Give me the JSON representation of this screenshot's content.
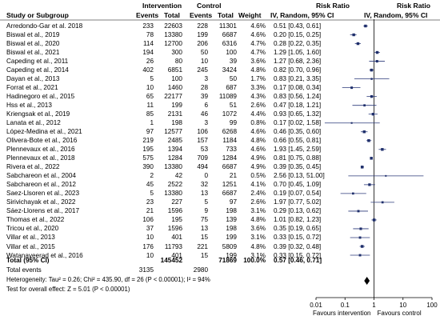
{
  "header": {
    "study": "Study or Subgroup",
    "intervention": "Intervention",
    "control": "Control",
    "events": "Events",
    "total": "Total",
    "weight": "Weight",
    "risk_ratio": "Risk Ratio",
    "method_left": "IV, Random, 95% CI",
    "method_right": "IV, Random, 95% CI"
  },
  "studies": [
    {
      "name": "Arredondo-Gar et al. 2018",
      "ie": "233",
      "it": "22603",
      "ce": "228",
      "ct": "11301",
      "w": "4.6%",
      "ci": "0.51 [0.43, 0.61]"
    },
    {
      "name": "Biswal et al., 2019",
      "ie": "78",
      "it": "13380",
      "ce": "199",
      "ct": "6687",
      "w": "4.6%",
      "ci": "0.20 [0.15, 0.25]"
    },
    {
      "name": "Biswal et al., 2020",
      "ie": "114",
      "it": "12700",
      "ce": "206",
      "ct": "6316",
      "w": "4.7%",
      "ci": "0.28 [0.22, 0.35]"
    },
    {
      "name": "Biswal et al., 2021",
      "ie": "194",
      "it": "300",
      "ce": "50",
      "ct": "100",
      "w": "4.7%",
      "ci": "1.29 [1.05, 1.60]"
    },
    {
      "name": "Capeding et al., 2011",
      "ie": "26",
      "it": "80",
      "ce": "10",
      "ct": "39",
      "w": "3.6%",
      "ci": "1.27 [0.68, 2.36]"
    },
    {
      "name": "Capeding et al., 2014",
      "ie": "402",
      "it": "6851",
      "ce": "245",
      "ct": "3424",
      "w": "4.8%",
      "ci": "0.82 [0.70, 0.96]"
    },
    {
      "name": "Dayan et al., 2013",
      "ie": "5",
      "it": "100",
      "ce": "3",
      "ct": "50",
      "w": "1.7%",
      "ci": "0.83 [0.21, 3.35]"
    },
    {
      "name": "Forrat et al., 2021",
      "ie": "10",
      "it": "1460",
      "ce": "28",
      "ct": "687",
      "w": "3.3%",
      "ci": "0.17 [0.08, 0.34]"
    },
    {
      "name": "Hadinegoro et al., 2015",
      "ie": "65",
      "it": "22177",
      "ce": "39",
      "ct": "11089",
      "w": "4.3%",
      "ci": "0.83 [0.56, 1.24]"
    },
    {
      "name": "Hss et al., 2013",
      "ie": "11",
      "it": "199",
      "ce": "6",
      "ct": "51",
      "w": "2.6%",
      "ci": "0.47 [0.18, 1.21]"
    },
    {
      "name": "Kriengsak et al., 2019",
      "ie": "85",
      "it": "2131",
      "ce": "46",
      "ct": "1072",
      "w": "4.4%",
      "ci": "0.93 [0.65, 1.32]"
    },
    {
      "name": "Lanata et al., 2012",
      "ie": "1",
      "it": "198",
      "ce": "3",
      "ct": "99",
      "w": "0.8%",
      "ci": "0.17 [0.02, 1.58]"
    },
    {
      "name": "López-Medina et al., 2021",
      "ie": "97",
      "it": "12577",
      "ce": "106",
      "ct": "6268",
      "w": "4.6%",
      "ci": "0.46 [0.35, 0.60]"
    },
    {
      "name": "Olivera-Bote et al., 2016",
      "ie": "219",
      "it": "2485",
      "ce": "157",
      "ct": "1184",
      "w": "4.8%",
      "ci": "0.66 [0.55, 0.81]"
    },
    {
      "name": "Plennevaux et al., 2016",
      "ie": "195",
      "it": "1394",
      "ce": "53",
      "ct": "733",
      "w": "4.6%",
      "ci": "1.93 [1.45, 2.59]"
    },
    {
      "name": "Plennevaux et al., 2018",
      "ie": "575",
      "it": "1284",
      "ce": "709",
      "ct": "1284",
      "w": "4.9%",
      "ci": "0.81 [0.75, 0.88]"
    },
    {
      "name": "Rivera et al., 2022",
      "ie": "390",
      "it": "13380",
      "ce": "494",
      "ct": "6687",
      "w": "4.9%",
      "ci": "0.39 [0.35, 0.45]"
    },
    {
      "name": "Sabchareon et al., 2004",
      "ie": "2",
      "it": "42",
      "ce": "0",
      "ct": "21",
      "w": "0.5%",
      "ci": "2.56 [0.13, 51.00]"
    },
    {
      "name": "Sabchareon et al., 2012",
      "ie": "45",
      "it": "2522",
      "ce": "32",
      "ct": "1251",
      "w": "4.1%",
      "ci": "0.70 [0.45, 1.09]"
    },
    {
      "name": "Saez-Llsoren et al., 2023",
      "ie": "5",
      "it": "13380",
      "ce": "13",
      "ct": "6687",
      "w": "2.4%",
      "ci": "0.19 [0.07, 0.54]"
    },
    {
      "name": "Sirivichayak et al., 2022",
      "ie": "23",
      "it": "227",
      "ce": "5",
      "ct": "97",
      "w": "2.6%",
      "ci": "1.97 [0.77, 5.02]"
    },
    {
      "name": "Sáez-Llorens et al., 2017",
      "ie": "21",
      "it": "1596",
      "ce": "9",
      "ct": "198",
      "w": "3.1%",
      "ci": "0.29 [0.13, 0.62]"
    },
    {
      "name": "Thomas et al., 2022",
      "ie": "106",
      "it": "195",
      "ce": "75",
      "ct": "139",
      "w": "4.8%",
      "ci": "1.01 [0.82, 1.23]"
    },
    {
      "name": "Tricou et al., 2020",
      "ie": "37",
      "it": "1596",
      "ce": "13",
      "ct": "198",
      "w": "3.6%",
      "ci": "0.35 [0.19, 0.65]"
    },
    {
      "name": "Villar et al., 2013",
      "ie": "10",
      "it": "401",
      "ce": "15",
      "ct": "199",
      "w": "3.1%",
      "ci": "0.33 [0.15, 0.72]"
    },
    {
      "name": "Villar et al., 2015",
      "ie": "176",
      "it": "11793",
      "ce": "221",
      "ct": "5809",
      "w": "4.8%",
      "ci": "0.39 [0.32, 0.48]"
    },
    {
      "name": "Watanaveerad et al., 2016",
      "ie": "10",
      "it": "401",
      "ce": "15",
      "ct": "199",
      "w": "3.1%",
      "ci": "0.33 [0.15, 0.72]"
    }
  ],
  "total": {
    "label": "Total (95% CI)",
    "it": "145452",
    "ct": "71869",
    "w": "100.0%",
    "ci": "0.57 [0.46, 0.71]"
  },
  "total_events": {
    "label": "Total events",
    "ie": "3135",
    "ce": "2980"
  },
  "heterogeneity": "Heterogeneity: Tau² = 0.26; Chi² = 435.90, df = 26 (P < 0.00001); I² = 94%",
  "overall_effect": "Test for overall effect: Z = 5.01 (P < 0.00001)",
  "axis": {
    "ticks": [
      "0.01",
      "0.1",
      "1",
      "10",
      "100"
    ],
    "favours_left": "Favours intervention",
    "favours_right": "Favours control"
  },
  "colors": {
    "point": "#1f2f6b",
    "line": "#2b3a7a",
    "diamond": "#000000"
  },
  "chart_data": {
    "type": "forest",
    "scale": "log",
    "xlim": [
      0.01,
      100
    ],
    "reference_line": 1,
    "points": [
      {
        "rr": 0.51,
        "lo": 0.43,
        "hi": 0.61,
        "w": 4.6
      },
      {
        "rr": 0.2,
        "lo": 0.15,
        "hi": 0.25,
        "w": 4.6
      },
      {
        "rr": 0.28,
        "lo": 0.22,
        "hi": 0.35,
        "w": 4.7
      },
      {
        "rr": 1.29,
        "lo": 1.05,
        "hi": 1.6,
        "w": 4.7
      },
      {
        "rr": 1.27,
        "lo": 0.68,
        "hi": 2.36,
        "w": 3.6
      },
      {
        "rr": 0.82,
        "lo": 0.7,
        "hi": 0.96,
        "w": 4.8
      },
      {
        "rr": 0.83,
        "lo": 0.21,
        "hi": 3.35,
        "w": 1.7
      },
      {
        "rr": 0.17,
        "lo": 0.08,
        "hi": 0.34,
        "w": 3.3
      },
      {
        "rr": 0.83,
        "lo": 0.56,
        "hi": 1.24,
        "w": 4.3
      },
      {
        "rr": 0.47,
        "lo": 0.18,
        "hi": 1.21,
        "w": 2.6
      },
      {
        "rr": 0.93,
        "lo": 0.65,
        "hi": 1.32,
        "w": 4.4
      },
      {
        "rr": 0.17,
        "lo": 0.02,
        "hi": 1.58,
        "w": 0.8
      },
      {
        "rr": 0.46,
        "lo": 0.35,
        "hi": 0.6,
        "w": 4.6
      },
      {
        "rr": 0.66,
        "lo": 0.55,
        "hi": 0.81,
        "w": 4.8
      },
      {
        "rr": 1.93,
        "lo": 1.45,
        "hi": 2.59,
        "w": 4.6
      },
      {
        "rr": 0.81,
        "lo": 0.75,
        "hi": 0.88,
        "w": 4.9
      },
      {
        "rr": 0.39,
        "lo": 0.35,
        "hi": 0.45,
        "w": 4.9
      },
      {
        "rr": 2.56,
        "lo": 0.13,
        "hi": 51.0,
        "w": 0.5
      },
      {
        "rr": 0.7,
        "lo": 0.45,
        "hi": 1.09,
        "w": 4.1
      },
      {
        "rr": 0.19,
        "lo": 0.07,
        "hi": 0.54,
        "w": 2.4
      },
      {
        "rr": 1.97,
        "lo": 0.77,
        "hi": 5.02,
        "w": 2.6
      },
      {
        "rr": 0.29,
        "lo": 0.13,
        "hi": 0.62,
        "w": 3.1
      },
      {
        "rr": 1.01,
        "lo": 0.82,
        "hi": 1.23,
        "w": 4.8
      },
      {
        "rr": 0.35,
        "lo": 0.19,
        "hi": 0.65,
        "w": 3.6
      },
      {
        "rr": 0.33,
        "lo": 0.15,
        "hi": 0.72,
        "w": 3.1
      },
      {
        "rr": 0.39,
        "lo": 0.32,
        "hi": 0.48,
        "w": 4.8
      },
      {
        "rr": 0.33,
        "lo": 0.15,
        "hi": 0.72,
        "w": 3.1
      }
    ],
    "pooled": {
      "rr": 0.57,
      "lo": 0.46,
      "hi": 0.71
    }
  }
}
